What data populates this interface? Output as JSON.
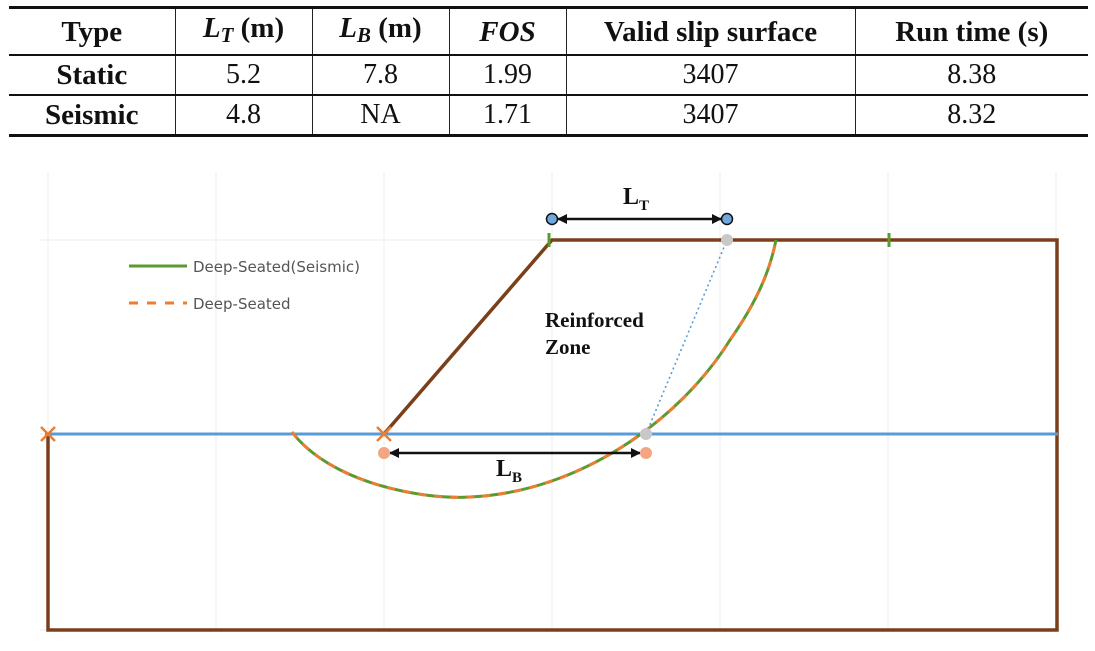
{
  "table": {
    "headers": {
      "type": "Type",
      "lt_sym": "L",
      "lt_sub": "T",
      "lt_unit": " (m)",
      "lb_sym": "L",
      "lb_sub": "B",
      "lb_unit": " (m)",
      "fos": "FOS",
      "valid": "Valid slip surface",
      "runtime": "Run time (s)"
    },
    "rows": [
      {
        "type": "Static",
        "lt": "5.2",
        "lb": "7.8",
        "fos": "1.99",
        "valid": "3407",
        "runtime": "8.38"
      },
      {
        "type": "Seismic",
        "lt": "4.8",
        "lb": "NA",
        "fos": "1.71",
        "valid": "3407",
        "runtime": "8.32"
      }
    ]
  },
  "diagram": {
    "legend": {
      "seismic": "Deep-Seated(Seismic)",
      "static": "Deep-Seated"
    },
    "zone_label_line1": "Reinforced",
    "zone_label_line2": "Zone",
    "lt_label": "L",
    "lt_sub": "T",
    "lb_label": "L",
    "lb_sub": "B",
    "colors": {
      "soil_boundary": "#7b3f1a",
      "water_table": "#5b9bd5",
      "seismic_line": "#5a9a32",
      "static_line": "#ed7d31",
      "dimension": "#111111",
      "endpoint_top": "#6fa8dc",
      "endpoint_bottom": "#f4a582",
      "gridline": "#ececec"
    }
  }
}
